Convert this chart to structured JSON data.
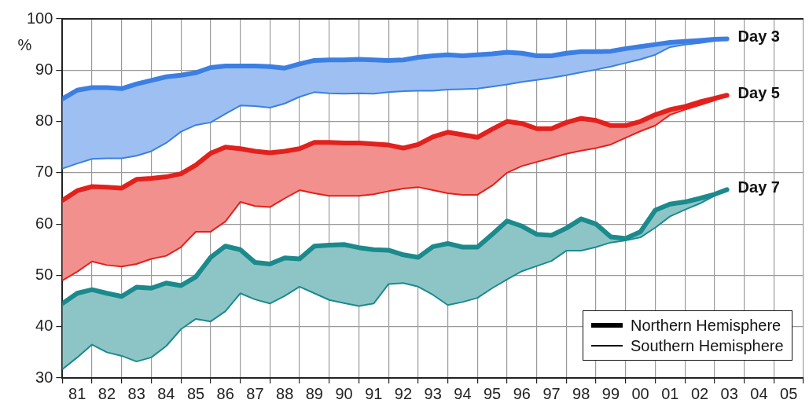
{
  "chart_data": {
    "type": "line",
    "ylabel": "%",
    "grid": true,
    "xlim": [
      "1981",
      "2006"
    ],
    "xticks": [
      {
        "value": "1981",
        "label": null
      },
      {
        "value": "1981-07",
        "label": "81"
      },
      {
        "value": "1982",
        "label": null
      },
      {
        "value": "1982-07",
        "label": "82"
      },
      {
        "value": "1983",
        "label": null
      },
      {
        "value": "1983-07",
        "label": "83"
      },
      {
        "value": "1984",
        "label": null
      },
      {
        "value": "1984-07",
        "label": "84"
      },
      {
        "value": "1985",
        "label": null
      },
      {
        "value": "1985-07",
        "label": "85"
      },
      {
        "value": "1986",
        "label": null
      },
      {
        "value": "1986-07",
        "label": "86"
      },
      {
        "value": "1987",
        "label": null
      },
      {
        "value": "1987-07",
        "label": "87"
      },
      {
        "value": "1988",
        "label": null
      },
      {
        "value": "1988-07",
        "label": "88"
      },
      {
        "value": "1989",
        "label": null
      },
      {
        "value": "1989-07",
        "label": "89"
      },
      {
        "value": "1990",
        "label": null
      },
      {
        "value": "1990-07",
        "label": "90"
      },
      {
        "value": "1991",
        "label": null
      },
      {
        "value": "1991-07",
        "label": "91"
      },
      {
        "value": "1992",
        "label": null
      },
      {
        "value": "1992-07",
        "label": "92"
      },
      {
        "value": "1993",
        "label": null
      },
      {
        "value": "1993-07",
        "label": "93"
      },
      {
        "value": "1994",
        "label": null
      },
      {
        "value": "1994-07",
        "label": "94"
      },
      {
        "value": "1995",
        "label": null
      },
      {
        "value": "1995-07",
        "label": "95"
      },
      {
        "value": "1996",
        "label": null
      },
      {
        "value": "1996-07",
        "label": "96"
      },
      {
        "value": "1997",
        "label": null
      },
      {
        "value": "1997-07",
        "label": "97"
      },
      {
        "value": "1998",
        "label": null
      },
      {
        "value": "1998-07",
        "label": "98"
      },
      {
        "value": "1999",
        "label": null
      },
      {
        "value": "1999-07",
        "label": "99"
      },
      {
        "value": "2000",
        "label": null
      },
      {
        "value": "2000-07",
        "label": "00"
      },
      {
        "value": "2001",
        "label": null
      },
      {
        "value": "2001-07",
        "label": "01"
      },
      {
        "value": "2002",
        "label": null
      },
      {
        "value": "2002-07",
        "label": "02"
      },
      {
        "value": "2003",
        "label": null
      },
      {
        "value": "2003-07",
        "label": "03"
      },
      {
        "value": "2004",
        "label": null
      },
      {
        "value": "2004-07",
        "label": "04"
      },
      {
        "value": "2005",
        "label": null
      },
      {
        "value": "2005-07",
        "label": "05"
      },
      {
        "value": "2006",
        "label": null
      }
    ],
    "ylim": [
      30,
      100
    ],
    "yticks": [
      30,
      40,
      50,
      60,
      70,
      80,
      90,
      100
    ],
    "x": [
      "1981-01",
      "1981-07",
      "1982-01",
      "1982-07",
      "1983-01",
      "1983-07",
      "1984-01",
      "1984-07",
      "1985-01",
      "1985-07",
      "1986-01",
      "1986-07",
      "1987-01",
      "1987-07",
      "1988-01",
      "1988-07",
      "1989-01",
      "1989-07",
      "1990-01",
      "1990-07",
      "1991-01",
      "1991-07",
      "1992-01",
      "1992-07",
      "1993-01",
      "1993-07",
      "1994-01",
      "1994-07",
      "1995-01",
      "1995-07",
      "1996-01",
      "1996-07",
      "1997-01",
      "1997-07",
      "1998-01",
      "1998-07",
      "1999-01",
      "1999-07",
      "2000-01",
      "2000-07",
      "2001-01",
      "2001-07",
      "2002-01",
      "2002-07",
      "2003-01",
      "2003-06"
    ],
    "series": [
      {
        "color": "#3b7fe3",
        "values": [
          84.4,
          86.1,
          86.6,
          86.6,
          86.4,
          87.3,
          88.0,
          88.7,
          89.0,
          89.5,
          90.5,
          90.8,
          90.8,
          90.8,
          90.7,
          90.4,
          91.2,
          91.9,
          92.0,
          92.0,
          92.1,
          92.0,
          91.9,
          92.0,
          92.5,
          92.8,
          93.0,
          92.8,
          93.0,
          93.2,
          93.5,
          93.3,
          92.8,
          92.8,
          93.3,
          93.6,
          93.6,
          93.7,
          94.2,
          94.6,
          95.0,
          95.4,
          95.6,
          95.8,
          96.0,
          96.1
        ],
        "lower": [
          70.8,
          71.8,
          72.7,
          72.8,
          72.8,
          73.3,
          74.2,
          75.8,
          78.0,
          79.3,
          79.8,
          81.5,
          83.1,
          83.0,
          82.7,
          83.5,
          84.8,
          85.7,
          85.5,
          85.4,
          85.5,
          85.4,
          85.7,
          85.9,
          86.0,
          86.0,
          86.2,
          86.3,
          86.4,
          86.8,
          87.2,
          87.7,
          88.1,
          88.5,
          89.0,
          89.6,
          90.1,
          90.7,
          91.4,
          92.1,
          93.0,
          94.5,
          95.0,
          95.3,
          95.7,
          96.0
        ],
        "upper": [
          84.4,
          86.1,
          86.6,
          86.6,
          86.4,
          87.3,
          88.0,
          88.7,
          89.0,
          89.5,
          90.5,
          90.8,
          90.8,
          90.8,
          90.7,
          90.4,
          91.2,
          91.9,
          92.0,
          92.0,
          92.1,
          92.0,
          91.9,
          92.0,
          92.5,
          92.8,
          93.0,
          92.8,
          93.0,
          93.2,
          93.5,
          93.3,
          92.8,
          92.8,
          93.3,
          93.6,
          93.6,
          93.7,
          94.2,
          94.6,
          95.0,
          95.4,
          95.6,
          95.8,
          96.0,
          96.1
        ]
      },
      {
        "color": "#3b7fe3",
        "values": [
          70.8,
          71.8,
          72.7,
          72.8,
          72.8,
          73.3,
          74.2,
          75.8,
          78.0,
          79.3,
          79.8,
          81.5,
          83.1,
          83.0,
          82.7,
          83.5,
          84.8,
          85.7,
          85.5,
          85.4,
          85.5,
          85.4,
          85.7,
          85.9,
          86.0,
          86.0,
          86.2,
          86.3,
          86.4,
          86.8,
          87.2,
          87.7,
          88.1,
          88.5,
          89.0,
          89.6,
          90.1,
          90.7,
          91.4,
          92.1,
          93.0,
          94.5,
          95.0,
          95.3,
          95.7,
          96.0
        ]
      },
      {
        "color": "#e3201b",
        "values": [
          64.6,
          66.5,
          67.3,
          67.2,
          67.0,
          68.7,
          68.9,
          69.2,
          69.8,
          71.5,
          73.8,
          75.0,
          74.7,
          74.2,
          73.9,
          74.2,
          74.7,
          75.9,
          75.9,
          75.8,
          75.8,
          75.6,
          75.4,
          74.8,
          75.5,
          77.0,
          77.9,
          77.4,
          76.9,
          78.5,
          80.0,
          79.6,
          78.6,
          78.6,
          79.8,
          80.6,
          80.2,
          79.2,
          79.2,
          80.0,
          81.3,
          82.3,
          82.9,
          83.8,
          84.5,
          85.1
        ],
        "lower": [
          49.0,
          50.7,
          52.7,
          52.0,
          51.7,
          52.2,
          53.2,
          53.8,
          55.5,
          58.5,
          58.5,
          60.5,
          64.3,
          63.5,
          63.3,
          65.0,
          66.6,
          66.0,
          65.5,
          65.5,
          65.5,
          65.8,
          66.4,
          66.9,
          67.2,
          66.6,
          66.0,
          65.7,
          65.7,
          67.5,
          70.0,
          71.3,
          72.1,
          72.9,
          73.7,
          74.3,
          74.8,
          75.5,
          76.8,
          78.1,
          79.2,
          81.3,
          82.3,
          83.2,
          84.1,
          85.0
        ],
        "upper": [
          64.6,
          66.5,
          67.3,
          67.2,
          67.0,
          68.7,
          68.9,
          69.2,
          69.8,
          71.5,
          73.8,
          75.0,
          74.7,
          74.2,
          73.9,
          74.2,
          74.7,
          75.9,
          75.9,
          75.8,
          75.8,
          75.6,
          75.4,
          74.8,
          75.5,
          77.0,
          77.9,
          77.4,
          76.9,
          78.5,
          80.0,
          79.6,
          78.6,
          78.6,
          79.8,
          80.6,
          80.2,
          79.2,
          79.2,
          80.0,
          81.3,
          82.3,
          82.9,
          83.8,
          84.5,
          85.1
        ]
      },
      {
        "color": "#e3201b",
        "values": [
          49.0,
          50.7,
          52.7,
          52.0,
          51.7,
          52.2,
          53.2,
          53.8,
          55.5,
          58.5,
          58.5,
          60.5,
          64.3,
          63.5,
          63.3,
          65.0,
          66.6,
          66.0,
          65.5,
          65.5,
          65.5,
          65.8,
          66.4,
          66.9,
          67.2,
          66.6,
          66.0,
          65.7,
          65.7,
          67.5,
          70.0,
          71.3,
          72.1,
          72.9,
          73.7,
          74.3,
          74.8,
          75.5,
          76.8,
          78.1,
          79.2,
          81.3,
          82.3,
          83.2,
          84.1,
          85.0
        ]
      },
      {
        "color": "#1b8a8c",
        "values": [
          44.5,
          46.5,
          47.2,
          46.5,
          45.9,
          47.7,
          47.5,
          48.5,
          48.0,
          49.7,
          53.5,
          55.7,
          55.0,
          52.5,
          52.2,
          53.4,
          53.2,
          55.7,
          55.9,
          56.0,
          55.4,
          55.0,
          54.9,
          54.0,
          53.5,
          55.6,
          56.2,
          55.5,
          55.5,
          58.0,
          60.6,
          59.6,
          58.0,
          57.8,
          59.2,
          61.0,
          60.0,
          57.5,
          57.2,
          58.5,
          62.7,
          63.9,
          64.3,
          65.0,
          65.8,
          66.7
        ],
        "lower": [
          31.7,
          34.0,
          36.5,
          35.0,
          34.3,
          33.2,
          34.0,
          36.2,
          39.5,
          41.5,
          41.0,
          43.0,
          46.5,
          45.3,
          44.5,
          46.0,
          47.8,
          46.5,
          45.2,
          44.6,
          44.0,
          44.5,
          48.3,
          48.5,
          47.8,
          46.2,
          44.2,
          44.8,
          45.6,
          47.5,
          49.2,
          50.8,
          51.8,
          52.8,
          54.8,
          54.8,
          55.5,
          56.4,
          56.8,
          57.4,
          59.3,
          61.5,
          62.8,
          64.0,
          65.5,
          66.7
        ],
        "upper": [
          44.5,
          46.5,
          47.2,
          46.5,
          45.9,
          47.7,
          47.5,
          48.5,
          48.0,
          49.7,
          53.5,
          55.7,
          55.0,
          52.5,
          52.2,
          53.4,
          53.2,
          55.7,
          55.9,
          56.0,
          55.4,
          55.0,
          54.9,
          54.0,
          53.5,
          55.6,
          56.2,
          55.5,
          55.5,
          58.0,
          60.6,
          59.6,
          58.0,
          57.8,
          59.2,
          61.0,
          60.0,
          57.5,
          57.2,
          58.5,
          62.7,
          63.9,
          64.3,
          65.0,
          65.8,
          66.7
        ]
      },
      {
        "color": "#1b8a8c",
        "values": [
          31.7,
          34.0,
          36.5,
          35.0,
          34.3,
          33.2,
          34.0,
          36.2,
          39.5,
          41.5,
          41.0,
          43.0,
          46.5,
          45.3,
          44.5,
          46.0,
          47.8,
          46.5,
          45.2,
          44.6,
          44.0,
          44.5,
          48.3,
          48.5,
          47.8,
          46.2,
          44.2,
          44.8,
          45.6,
          47.5,
          49.2,
          50.8,
          51.8,
          52.8,
          54.8,
          54.8,
          55.5,
          56.4,
          56.8,
          57.4,
          59.3,
          61.5,
          62.8,
          64.0,
          65.5,
          66.7
        ]
      }
    ],
    "annotations": [
      {
        "text": "Day 3",
        "x": "2003-06",
        "y": 96.1
      },
      {
        "text": "Day 5",
        "x": "2003-06",
        "y": 85.1
      },
      {
        "text": "Day 7",
        "x": "2003-06",
        "y": 66.7
      },
      "Northern Hemisphere",
      "Southern Hemisphere"
    ]
  }
}
